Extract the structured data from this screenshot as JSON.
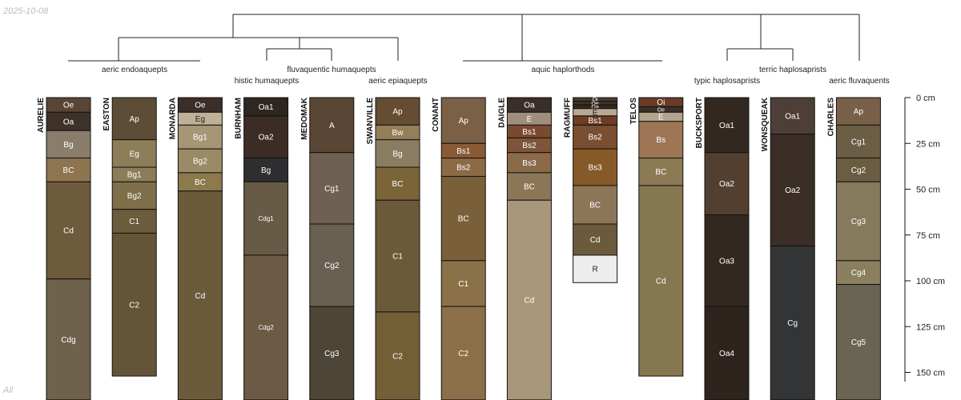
{
  "corner_date": "2025-10-08",
  "corner_footer": "All",
  "clusters": [
    "aeric endoaquepts",
    "fluvaquentic humaquepts",
    "histic humaquepts",
    "aeric epiaquepts",
    "aquic haplorthods",
    "terric haplosaprists",
    "typic haplosaprists",
    "aeric fluvaquents"
  ],
  "depth_axis": {
    "unit": "cm",
    "ticks": [
      {
        "value": 0,
        "label": "0 cm"
      },
      {
        "value": 25,
        "label": "25 cm"
      },
      {
        "value": 50,
        "label": "50 cm"
      },
      {
        "value": 75,
        "label": "75 cm"
      },
      {
        "value": 100,
        "label": "100 cm"
      },
      {
        "value": 125,
        "label": "125 cm"
      },
      {
        "value": 150,
        "label": "150 cm"
      }
    ]
  },
  "profiles": [
    {
      "name": "AURELIE",
      "horizons": [
        {
          "label": "Oe",
          "top": 0,
          "bottom": 8,
          "color": "#5a4535"
        },
        {
          "label": "Oa",
          "top": 8,
          "bottom": 18,
          "color": "#3e3228"
        },
        {
          "label": "Bg",
          "top": 18,
          "bottom": 33,
          "color": "#8a7d6c"
        },
        {
          "label": "BC",
          "top": 33,
          "bottom": 46,
          "color": "#8e7550"
        },
        {
          "label": "Cd",
          "top": 46,
          "bottom": 99,
          "color": "#6e5a3c"
        },
        {
          "label": "Cdg",
          "top": 99,
          "bottom": 165,
          "color": "#6f624c"
        }
      ]
    },
    {
      "name": "EASTON",
      "horizons": [
        {
          "label": "Ap",
          "top": 0,
          "bottom": 23,
          "color": "#5e4d36"
        },
        {
          "label": "Eg",
          "top": 23,
          "bottom": 38,
          "color": "#8d7d58"
        },
        {
          "label": "Bg1",
          "top": 38,
          "bottom": 46,
          "color": "#8c7c58"
        },
        {
          "label": "Bg2",
          "top": 46,
          "bottom": 61,
          "color": "#7e6e4a"
        },
        {
          "label": "C1",
          "top": 61,
          "bottom": 74,
          "color": "#6a5c3c"
        },
        {
          "label": "C2",
          "top": 74,
          "bottom": 152,
          "color": "#655538"
        }
      ]
    },
    {
      "name": "MONARDA",
      "horizons": [
        {
          "label": "Oe",
          "top": 0,
          "bottom": 8,
          "color": "#3a2e26"
        },
        {
          "label": "Eg",
          "top": 8,
          "bottom": 15,
          "color": "#c1b098"
        },
        {
          "label": "Bg1",
          "top": 15,
          "bottom": 28,
          "color": "#a59674"
        },
        {
          "label": "Bg2",
          "top": 28,
          "bottom": 41,
          "color": "#9b8a66"
        },
        {
          "label": "BC",
          "top": 41,
          "bottom": 51,
          "color": "#8c7a4c"
        },
        {
          "label": "Cd",
          "top": 51,
          "bottom": 165,
          "color": "#6b5b3a"
        }
      ]
    },
    {
      "name": "BURNHAM",
      "horizons": [
        {
          "label": "Oa1",
          "top": 0,
          "bottom": 10,
          "color": "#2e2620"
        },
        {
          "label": "Oa2",
          "top": 10,
          "bottom": 33,
          "color": "#3b2d25"
        },
        {
          "label": "Bg",
          "top": 33,
          "bottom": 46,
          "color": "#2e2e30"
        },
        {
          "label": "Cdg1",
          "top": 46,
          "bottom": 86,
          "color": "#675b45"
        },
        {
          "label": "Cdg2",
          "top": 86,
          "bottom": 165,
          "color": "#6c5a44"
        }
      ]
    },
    {
      "name": "MEDOMAK",
      "horizons": [
        {
          "label": "A",
          "top": 0,
          "bottom": 30,
          "color": "#594634"
        },
        {
          "label": "Cg1",
          "top": 30,
          "bottom": 69,
          "color": "#6e6152"
        },
        {
          "label": "Cg2",
          "top": 69,
          "bottom": 114,
          "color": "#6a6052"
        },
        {
          "label": "Cg3",
          "top": 114,
          "bottom": 165,
          "color": "#4d4536"
        }
      ]
    },
    {
      "name": "SWANVILLE",
      "horizons": [
        {
          "label": "Ap",
          "top": 0,
          "bottom": 15,
          "color": "#654c33"
        },
        {
          "label": "Bw",
          "top": 15,
          "bottom": 23,
          "color": "#947f58"
        },
        {
          "label": "Bg",
          "top": 23,
          "bottom": 38,
          "color": "#8b7d62"
        },
        {
          "label": "BC",
          "top": 38,
          "bottom": 56,
          "color": "#7a6438"
        },
        {
          "label": "C1",
          "top": 56,
          "bottom": 117,
          "color": "#6b5a3a"
        },
        {
          "label": "C2",
          "top": 117,
          "bottom": 165,
          "color": "#735e36"
        }
      ]
    },
    {
      "name": "CONANT",
      "horizons": [
        {
          "label": "Ap",
          "top": 0,
          "bottom": 25,
          "color": "#7b6045"
        },
        {
          "label": "Bs1",
          "top": 25,
          "bottom": 33,
          "color": "#8a5a35"
        },
        {
          "label": "Bs2",
          "top": 33,
          "bottom": 43,
          "color": "#8c6a46"
        },
        {
          "label": "BC",
          "top": 43,
          "bottom": 89,
          "color": "#7a6038"
        },
        {
          "label": "C1",
          "top": 89,
          "bottom": 114,
          "color": "#8a7148"
        },
        {
          "label": "C2",
          "top": 114,
          "bottom": 165,
          "color": "#8a6f48"
        }
      ]
    },
    {
      "name": "DAIGLE",
      "horizons": [
        {
          "label": "Oa",
          "top": 0,
          "bottom": 8,
          "color": "#3a2f28"
        },
        {
          "label": "E",
          "top": 8,
          "bottom": 15,
          "color": "#a08e7c"
        },
        {
          "label": "Bs1",
          "top": 15,
          "bottom": 22,
          "color": "#7a4a30"
        },
        {
          "label": "Bs2",
          "top": 22,
          "bottom": 30,
          "color": "#7e5538"
        },
        {
          "label": "Bs3",
          "top": 30,
          "bottom": 41,
          "color": "#8a6a48"
        },
        {
          "label": "BC",
          "top": 41,
          "bottom": 56,
          "color": "#8c7658"
        },
        {
          "label": "Cd",
          "top": 56,
          "bottom": 165,
          "color": "#a8967a"
        }
      ]
    },
    {
      "name": "RAGMUFF",
      "horizons": [
        {
          "label": "Oi",
          "top": 0,
          "bottom": 2,
          "color": "#4b3a2c"
        },
        {
          "label": "Oe",
          "top": 2,
          "bottom": 4,
          "color": "#3d3128"
        },
        {
          "label": "Oa",
          "top": 4,
          "bottom": 6,
          "color": "#35291f"
        },
        {
          "label": "E",
          "top": 6,
          "bottom": 10,
          "color": "#b9a994"
        },
        {
          "label": "Bs1",
          "top": 10,
          "bottom": 15,
          "color": "#6e3d24"
        },
        {
          "label": "Bs2",
          "top": 15,
          "bottom": 28,
          "color": "#7a4e30"
        },
        {
          "label": "Bs3",
          "top": 28,
          "bottom": 48,
          "color": "#865a28"
        },
        {
          "label": "BC",
          "top": 48,
          "bottom": 69,
          "color": "#8c7658"
        },
        {
          "label": "Cd",
          "top": 69,
          "bottom": 86,
          "color": "#6b5a3c"
        },
        {
          "label": "R",
          "top": 86,
          "bottom": 101,
          "color": "#ededed"
        }
      ]
    },
    {
      "name": "TELOS",
      "horizons": [
        {
          "label": "Oi",
          "top": 0,
          "bottom": 5,
          "color": "#6a3c25"
        },
        {
          "label": "Oe",
          "top": 5,
          "bottom": 8,
          "color": "#3b2f27"
        },
        {
          "label": "E",
          "top": 8,
          "bottom": 13,
          "color": "#b3a38c"
        },
        {
          "label": "Bs",
          "top": 13,
          "bottom": 33,
          "color": "#9e7656"
        },
        {
          "label": "BC",
          "top": 33,
          "bottom": 48,
          "color": "#8c7a54"
        },
        {
          "label": "Cd",
          "top": 48,
          "bottom": 152,
          "color": "#857750"
        }
      ]
    },
    {
      "name": "BUCKSPORT",
      "horizons": [
        {
          "label": "Oa1",
          "top": 0,
          "bottom": 30,
          "color": "#332820"
        },
        {
          "label": "Oa2",
          "top": 30,
          "bottom": 64,
          "color": "#533f30"
        },
        {
          "label": "Oa3",
          "top": 64,
          "bottom": 114,
          "color": "#332820"
        },
        {
          "label": "Oa4",
          "top": 114,
          "bottom": 165,
          "color": "#2e241d"
        }
      ]
    },
    {
      "name": "WONSQUEAK",
      "horizons": [
        {
          "label": "Oa1",
          "top": 0,
          "bottom": 20,
          "color": "#4d3f37"
        },
        {
          "label": "Oa2",
          "top": 20,
          "bottom": 81,
          "color": "#3b2e27"
        },
        {
          "label": "Cg",
          "top": 81,
          "bottom": 165,
          "color": "#323436"
        }
      ]
    },
    {
      "name": "CHARLES",
      "horizons": [
        {
          "label": "Ap",
          "top": 0,
          "bottom": 15,
          "color": "#786048"
        },
        {
          "label": "Cg1",
          "top": 15,
          "bottom": 33,
          "color": "#6c5e44"
        },
        {
          "label": "Cg2",
          "top": 33,
          "bottom": 46,
          "color": "#6a5d42"
        },
        {
          "label": "Cg3",
          "top": 46,
          "bottom": 89,
          "color": "#857a5c"
        },
        {
          "label": "Cg4",
          "top": 89,
          "bottom": 102,
          "color": "#8a8060"
        },
        {
          "label": "Cg5",
          "top": 102,
          "bottom": 165,
          "color": "#6a6452"
        }
      ]
    }
  ]
}
